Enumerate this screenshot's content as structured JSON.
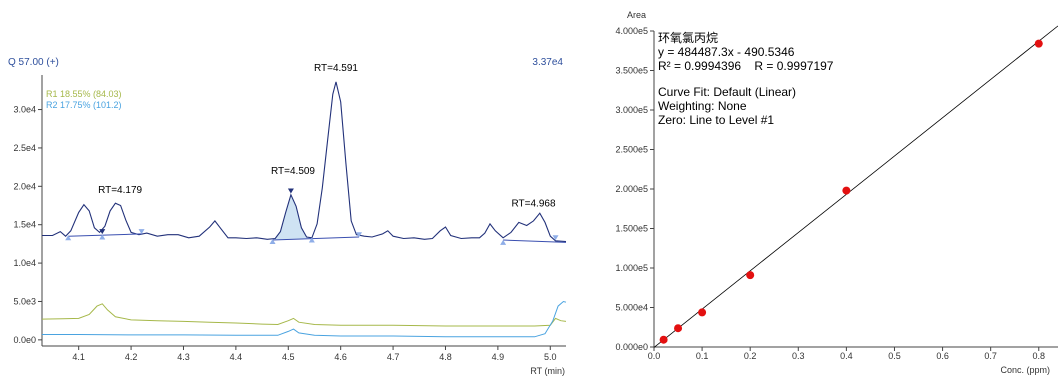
{
  "chart_data": [
    {
      "type": "line",
      "header_left": "Q 57.00 (+)",
      "header_right": "3.37e4",
      "xlabel": "RT (min)",
      "ylabel": "",
      "xlim": [
        4.03,
        5.03
      ],
      "ylim": [
        -800,
        34500
      ],
      "x_ticks": [
        4.1,
        4.2,
        4.3,
        4.4,
        4.5,
        4.6,
        4.7,
        4.8,
        4.9,
        5.0
      ],
      "x_tick_labels": [
        "4.1",
        "4.2",
        "4.3",
        "4.4",
        "4.5",
        "4.6",
        "4.7",
        "4.8",
        "4.9",
        "5.0"
      ],
      "y_ticks": [
        0,
        5000,
        10000,
        15000,
        20000,
        25000,
        30000
      ],
      "y_tick_labels": [
        "0.0e0",
        "5.0e3",
        "1.0e4",
        "1.5e4",
        "2.0e4",
        "2.5e4",
        "3.0e4"
      ],
      "legend": [
        {
          "label": "R1 18.55% (84.03)",
          "color": "#a6b84a"
        },
        {
          "label": "R2 17.75% (101.2)",
          "color": "#4aa3e0"
        }
      ],
      "series": [
        {
          "name": "Q 57.00 (+)",
          "color": "#22317a",
          "points": [
            [
              4.03,
              13600
            ],
            [
              4.05,
              13600
            ],
            [
              4.065,
              14100
            ],
            [
              4.075,
              13500
            ],
            [
              4.085,
              14200
            ],
            [
              4.1,
              16600
            ],
            [
              4.11,
              17600
            ],
            [
              4.12,
              16800
            ],
            [
              4.13,
              14600
            ],
            [
              4.14,
              14000
            ],
            [
              4.15,
              14800
            ],
            [
              4.16,
              16800
            ],
            [
              4.17,
              17800
            ],
            [
              4.18,
              17500
            ],
            [
              4.19,
              15600
            ],
            [
              4.2,
              14000
            ],
            [
              4.215,
              13700
            ],
            [
              4.23,
              13900
            ],
            [
              4.25,
              13500
            ],
            [
              4.27,
              13700
            ],
            [
              4.29,
              13700
            ],
            [
              4.31,
              13300
            ],
            [
              4.33,
              13500
            ],
            [
              4.35,
              14700
            ],
            [
              4.36,
              15500
            ],
            [
              4.37,
              14600
            ],
            [
              4.385,
              13300
            ],
            [
              4.4,
              13300
            ],
            [
              4.42,
              13200
            ],
            [
              4.44,
              13300
            ],
            [
              4.46,
              13100
            ],
            [
              4.475,
              13200
            ],
            [
              4.485,
              14100
            ],
            [
              4.495,
              16600
            ],
            [
              4.505,
              18900
            ],
            [
              4.515,
              17400
            ],
            [
              4.525,
              14600
            ],
            [
              4.535,
              13400
            ],
            [
              4.545,
              13300
            ],
            [
              4.555,
              15100
            ],
            [
              4.565,
              19800
            ],
            [
              4.575,
              26000
            ],
            [
              4.585,
              32000
            ],
            [
              4.591,
              33600
            ],
            [
              4.6,
              31000
            ],
            [
              4.61,
              23000
            ],
            [
              4.62,
              15500
            ],
            [
              4.63,
              13700
            ],
            [
              4.645,
              13500
            ],
            [
              4.66,
              13400
            ],
            [
              4.68,
              13800
            ],
            [
              4.69,
              14200
            ],
            [
              4.7,
              13500
            ],
            [
              4.72,
              13200
            ],
            [
              4.74,
              13300
            ],
            [
              4.76,
              13100
            ],
            [
              4.775,
              13200
            ],
            [
              4.79,
              14200
            ],
            [
              4.8,
              14700
            ],
            [
              4.81,
              13600
            ],
            [
              4.83,
              13200
            ],
            [
              4.85,
              13300
            ],
            [
              4.865,
              13300
            ],
            [
              4.875,
              13900
            ],
            [
              4.885,
              15100
            ],
            [
              4.895,
              14200
            ],
            [
              4.91,
              13300
            ],
            [
              4.925,
              14000
            ],
            [
              4.94,
              15300
            ],
            [
              4.955,
              14900
            ],
            [
              4.968,
              15500
            ],
            [
              4.98,
              16500
            ],
            [
              4.99,
              15300
            ],
            [
              5.0,
              13500
            ],
            [
              5.01,
              12900
            ],
            [
              5.03,
              12800
            ]
          ]
        },
        {
          "name": "R1",
          "color": "#a6b84a",
          "points": [
            [
              4.03,
              2700
            ],
            [
              4.07,
              2750
            ],
            [
              4.1,
              2800
            ],
            [
              4.12,
              3300
            ],
            [
              4.135,
              4400
            ],
            [
              4.145,
              4700
            ],
            [
              4.155,
              3900
            ],
            [
              4.17,
              3000
            ],
            [
              4.2,
              2600
            ],
            [
              4.25,
              2500
            ],
            [
              4.3,
              2400
            ],
            [
              4.35,
              2300
            ],
            [
              4.4,
              2200
            ],
            [
              4.45,
              2050
            ],
            [
              4.48,
              2000
            ],
            [
              4.5,
              2500
            ],
            [
              4.51,
              2800
            ],
            [
              4.52,
              2300
            ],
            [
              4.55,
              2000
            ],
            [
              4.6,
              1900
            ],
            [
              4.65,
              1900
            ],
            [
              4.7,
              1900
            ],
            [
              4.8,
              1800
            ],
            [
              4.9,
              1800
            ],
            [
              4.97,
              1800
            ],
            [
              5.0,
              1900
            ],
            [
              5.01,
              2800
            ],
            [
              5.02,
              2500
            ],
            [
              5.03,
              2400
            ]
          ]
        },
        {
          "name": "R2",
          "color": "#4aa3e0",
          "points": [
            [
              4.03,
              700
            ],
            [
              4.1,
              700
            ],
            [
              4.2,
              650
            ],
            [
              4.3,
              650
            ],
            [
              4.4,
              600
            ],
            [
              4.48,
              600
            ],
            [
              4.5,
              1100
            ],
            [
              4.51,
              1400
            ],
            [
              4.52,
              900
            ],
            [
              4.55,
              600
            ],
            [
              4.6,
              500
            ],
            [
              4.7,
              500
            ],
            [
              4.8,
              400
            ],
            [
              4.9,
              400
            ],
            [
              4.97,
              400
            ],
            [
              4.99,
              800
            ],
            [
              5.005,
              2500
            ],
            [
              5.015,
              4400
            ],
            [
              5.025,
              5000
            ],
            [
              5.03,
              4900
            ]
          ]
        }
      ],
      "baselines": [
        {
          "x1": 4.08,
          "y1": 13500,
          "x2": 4.22,
          "y2": 13800
        },
        {
          "x1": 4.47,
          "y1": 13000,
          "x2": 4.635,
          "y2": 13400
        },
        {
          "x1": 4.91,
          "y1": 13000,
          "x2": 5.03,
          "y2": 12700
        }
      ],
      "peak_markers": [
        {
          "x": 4.08,
          "y": 13500,
          "dir": "up",
          "color": "#8faee8"
        },
        {
          "x": 4.145,
          "y": 13600,
          "dir": "up",
          "color": "#8faee8"
        },
        {
          "x": 4.145,
          "y": 13900,
          "dir": "down",
          "color": "#22317a"
        },
        {
          "x": 4.22,
          "y": 13900,
          "dir": "down",
          "color": "#8faee8"
        },
        {
          "x": 4.47,
          "y": 13000,
          "dir": "up",
          "color": "#8faee8"
        },
        {
          "x": 4.505,
          "y": 19200,
          "dir": "down",
          "color": "#22317a"
        },
        {
          "x": 4.545,
          "y": 13200,
          "dir": "up",
          "color": "#8faee8"
        },
        {
          "x": 4.635,
          "y": 13500,
          "dir": "down",
          "color": "#8faee8"
        },
        {
          "x": 4.91,
          "y": 12900,
          "dir": "up",
          "color": "#8faee8"
        },
        {
          "x": 5.01,
          "y": 13100,
          "dir": "down",
          "color": "#8faee8"
        }
      ],
      "shaded_peak": {
        "from": 4.475,
        "to": 4.545,
        "color": "#cfe3f3"
      },
      "annotations": [
        {
          "text": "RT=4.179",
          "x": 4.179,
          "y": 19100
        },
        {
          "text": "RT=4.509",
          "x": 4.509,
          "y": 21600
        },
        {
          "text": "RT=4.591",
          "x": 4.591,
          "y": 35000
        },
        {
          "text": "RT=4.968",
          "x": 4.968,
          "y": 17400
        }
      ]
    },
    {
      "type": "scatter",
      "title": "",
      "xlabel": "Conc. (ppm)",
      "ylabel": "Area",
      "xlim": [
        0.0,
        0.84
      ],
      "ylim": [
        0,
        400000
      ],
      "x_ticks": [
        0.0,
        0.1,
        0.2,
        0.3,
        0.4,
        0.5,
        0.6,
        0.7,
        0.8
      ],
      "x_tick_labels": [
        "0.0",
        "0.1",
        "0.2",
        "0.3",
        "0.4",
        "0.5",
        "0.6",
        "0.7",
        "0.8"
      ],
      "y_ticks": [
        0,
        50000,
        100000,
        150000,
        200000,
        250000,
        300000,
        350000,
        400000
      ],
      "y_tick_labels": [
        "0.000e0",
        "5.000e4",
        "1.000e5",
        "1.500e5",
        "2.000e5",
        "2.500e5",
        "3.000e5",
        "3.500e5",
        "4.000e5"
      ],
      "fit": {
        "slope": 484487.3,
        "intercept": -490.5346
      },
      "points": [
        [
          0.02,
          9200
        ],
        [
          0.05,
          23800
        ],
        [
          0.1,
          43800
        ],
        [
          0.2,
          91000
        ],
        [
          0.4,
          198000
        ],
        [
          0.8,
          384000
        ]
      ],
      "point_color": "#e31010",
      "info_lines": [
        "环氧氯丙烷",
        "y = 484487.3x - 490.5346",
        "R² = 0.9994396    R = 0.9997197",
        "Curve Fit: Default (Linear)",
        "Weighting: None",
        "Zero: Line to Level #1"
      ]
    }
  ]
}
